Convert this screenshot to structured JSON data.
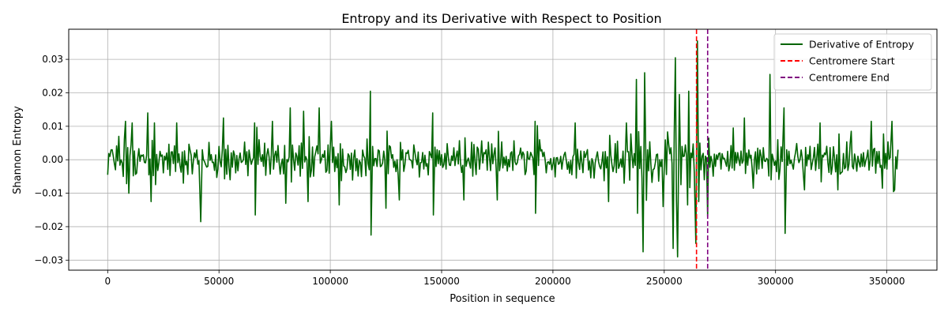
{
  "chart_data": {
    "type": "line",
    "title": "Entropy and its Derivative with Respect to Position",
    "xlabel": "Position in sequence",
    "ylabel": "Shannon Entropy",
    "xlim": [
      -17500,
      372500
    ],
    "ylim": [
      -0.033,
      0.039
    ],
    "xticks": [
      0,
      50000,
      100000,
      150000,
      200000,
      250000,
      300000,
      350000
    ],
    "yticks": [
      -0.03,
      -0.02,
      -0.01,
      0.0,
      0.01,
      0.02,
      0.03
    ],
    "ytick_labels": [
      "−0.03",
      "−0.02",
      "−0.01",
      "0.00",
      "0.01",
      "0.02",
      "0.03"
    ],
    "grid": true,
    "legend_position": "top-right",
    "series": [
      {
        "name": "Derivative of Entropy",
        "color": "#006400",
        "style": "solid",
        "x_start": 0,
        "x_step": 500,
        "keypoints": [
          [
            0,
            -0.0045
          ],
          [
            1000,
            0.001
          ],
          [
            2000,
            0.003
          ],
          [
            3500,
            -0.003
          ],
          [
            5000,
            0.007
          ],
          [
            7000,
            -0.005
          ],
          [
            8000,
            0.0115
          ],
          [
            9500,
            -0.01
          ],
          [
            11000,
            0.011
          ],
          [
            13000,
            -0.004
          ],
          [
            18000,
            0.014
          ],
          [
            19500,
            -0.0125
          ],
          [
            21000,
            0.011
          ],
          [
            31000,
            0.011
          ],
          [
            34000,
            -0.007
          ],
          [
            41800,
            -0.0185
          ],
          [
            42500,
            0.003
          ],
          [
            52000,
            0.0125
          ],
          [
            55000,
            -0.006
          ],
          [
            66000,
            0.011
          ],
          [
            66300,
            -0.0165
          ],
          [
            68000,
            0.006
          ],
          [
            74000,
            0.0115
          ],
          [
            80000,
            -0.013
          ],
          [
            82000,
            0.0155
          ],
          [
            88000,
            0.0145
          ],
          [
            90000,
            -0.0125
          ],
          [
            95000,
            0.0155
          ],
          [
            100500,
            0.0115
          ],
          [
            104000,
            -0.0135
          ],
          [
            118000,
            0.0205
          ],
          [
            118300,
            -0.0225
          ],
          [
            119000,
            0.004
          ],
          [
            125000,
            -0.0145
          ],
          [
            131000,
            -0.012
          ],
          [
            146000,
            0.014
          ],
          [
            146300,
            -0.0165
          ],
          [
            148000,
            0.003
          ],
          [
            160000,
            -0.012
          ],
          [
            175000,
            -0.012
          ],
          [
            192000,
            0.0115
          ],
          [
            192200,
            -0.016
          ],
          [
            194000,
            0.006
          ],
          [
            210000,
            0.011
          ],
          [
            225000,
            -0.0125
          ],
          [
            233000,
            0.011
          ],
          [
            237500,
            0.024
          ],
          [
            238000,
            -0.016
          ],
          [
            240500,
            -0.0275
          ],
          [
            241200,
            0.026
          ],
          [
            242500,
            0.003
          ],
          [
            249500,
            -0.014
          ],
          [
            254000,
            -0.0265
          ],
          [
            255000,
            0.0305
          ],
          [
            256000,
            -0.029
          ],
          [
            256800,
            0.0195
          ],
          [
            258000,
            0.004
          ],
          [
            260500,
            -0.0135
          ],
          [
            261000,
            0.0205
          ],
          [
            262000,
            0.002
          ],
          [
            264200,
            -0.025
          ],
          [
            264900,
            0.0355
          ],
          [
            266000,
            0.005
          ],
          [
            268000,
            -0.006
          ],
          [
            269500,
            -0.017
          ],
          [
            271000,
            0.001
          ],
          [
            275000,
            0.002
          ],
          [
            281000,
            0.0095
          ],
          [
            286000,
            0.0125
          ],
          [
            290000,
            -0.0085
          ],
          [
            297500,
            0.0255
          ],
          [
            298000,
            -0.006
          ],
          [
            301000,
            0.006
          ],
          [
            303800,
            0.0155
          ],
          [
            304300,
            -0.022
          ],
          [
            305000,
            0.003
          ],
          [
            313000,
            -0.009
          ],
          [
            320000,
            0.011
          ],
          [
            328000,
            -0.009
          ],
          [
            334000,
            0.0085
          ],
          [
            343000,
            0.0115
          ],
          [
            348000,
            -0.0085
          ],
          [
            352300,
            0.0115
          ],
          [
            353500,
            -0.009
          ],
          [
            355000,
            0.003
          ]
        ]
      },
      {
        "name": "Centromere Start",
        "color": "#ff0000",
        "style": "dashed",
        "x": 264500
      },
      {
        "name": "Centromere End",
        "color": "#800080",
        "style": "dashed",
        "x": 269500
      }
    ]
  }
}
